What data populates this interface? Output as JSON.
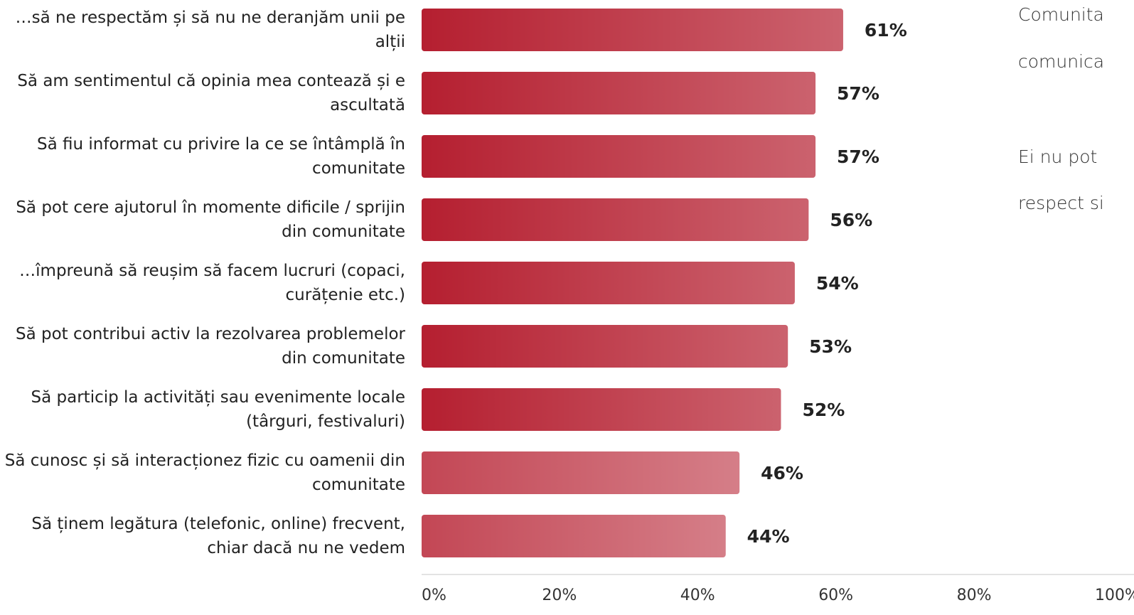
{
  "chart_data": {
    "type": "bar",
    "orientation": "horizontal",
    "categories": [
      "…să ne respectăm și să nu ne deranjăm unii pe alții",
      "Să am sentimentul că opinia mea contează și e ascultată",
      "Să fiu informat cu privire la ce se întâmplă în comunitate",
      "Să pot cere ajutorul în momente dificile / sprijin din comunitate",
      "…împreună să reușim să facem lucruri (copaci, curățenie etc.)",
      "Să pot contribui activ la rezolvarea problemelor din comunitate",
      "Să particip la activități sau evenimente locale (târguri, festivaluri)",
      "Să cunosc și să interacționez fizic cu oamenii din comunitate",
      "Să ținem legătura (telefonic, online) frecvent, chiar dacă nu ne vedem"
    ],
    "values": [
      61,
      57,
      57,
      56,
      54,
      53,
      52,
      46,
      44
    ],
    "value_labels": [
      "61%",
      "57%",
      "57%",
      "56%",
      "54%",
      "53%",
      "52%",
      "46%",
      "44%"
    ],
    "colors": [
      "#b51f30",
      "#b51f30",
      "#b51f30",
      "#b51f30",
      "#b51f30",
      "#b51f30",
      "#b51f30",
      "#c34755",
      "#c34755"
    ],
    "xlim": [
      0,
      100
    ],
    "xticks": [
      {
        "value": 0,
        "label": "0%"
      },
      {
        "value": 20,
        "label": "20%"
      },
      {
        "value": 40,
        "label": "40%"
      },
      {
        "value": 60,
        "label": "60%"
      },
      {
        "value": 80,
        "label": "80%"
      },
      {
        "value": 100,
        "label": "100%"
      }
    ],
    "grid": false,
    "annotations": [
      "Comunita",
      "comunica",
      "Ei nu pot",
      "respect si"
    ]
  }
}
